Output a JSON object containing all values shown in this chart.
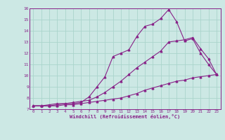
{
  "xlabel": "Windchill (Refroidissement éolien,°C)",
  "xmin": 0,
  "xmax": 23,
  "ymin": 7,
  "ymax": 16,
  "yticks": [
    7,
    8,
    9,
    10,
    11,
    12,
    13,
    14,
    15,
    16
  ],
  "xticks": [
    0,
    1,
    2,
    3,
    4,
    5,
    6,
    7,
    8,
    9,
    10,
    11,
    12,
    13,
    14,
    15,
    16,
    17,
    18,
    19,
    20,
    21,
    22,
    23
  ],
  "background_color": "#cce8e4",
  "grid_color": "#aad4cc",
  "line_color": "#882288",
  "series1": [
    7.3,
    7.3,
    7.3,
    7.4,
    7.5,
    7.5,
    7.6,
    8.1,
    9.0,
    9.9,
    11.7,
    12.0,
    12.3,
    13.5,
    14.4,
    14.6,
    15.1,
    15.9,
    14.8,
    13.1,
    13.3,
    12.0,
    11.0,
    10.1
  ],
  "series2": [
    7.3,
    7.3,
    7.4,
    7.5,
    7.5,
    7.6,
    7.7,
    7.8,
    8.1,
    8.5,
    9.0,
    9.5,
    10.1,
    10.7,
    11.2,
    11.7,
    12.2,
    13.0,
    13.1,
    13.2,
    13.4,
    12.4,
    11.5,
    10.1
  ],
  "series3": [
    7.3,
    7.3,
    7.3,
    7.3,
    7.4,
    7.4,
    7.5,
    7.6,
    7.7,
    7.8,
    7.9,
    8.0,
    8.2,
    8.4,
    8.7,
    8.9,
    9.1,
    9.3,
    9.5,
    9.6,
    9.8,
    9.9,
    10.0,
    10.1
  ]
}
